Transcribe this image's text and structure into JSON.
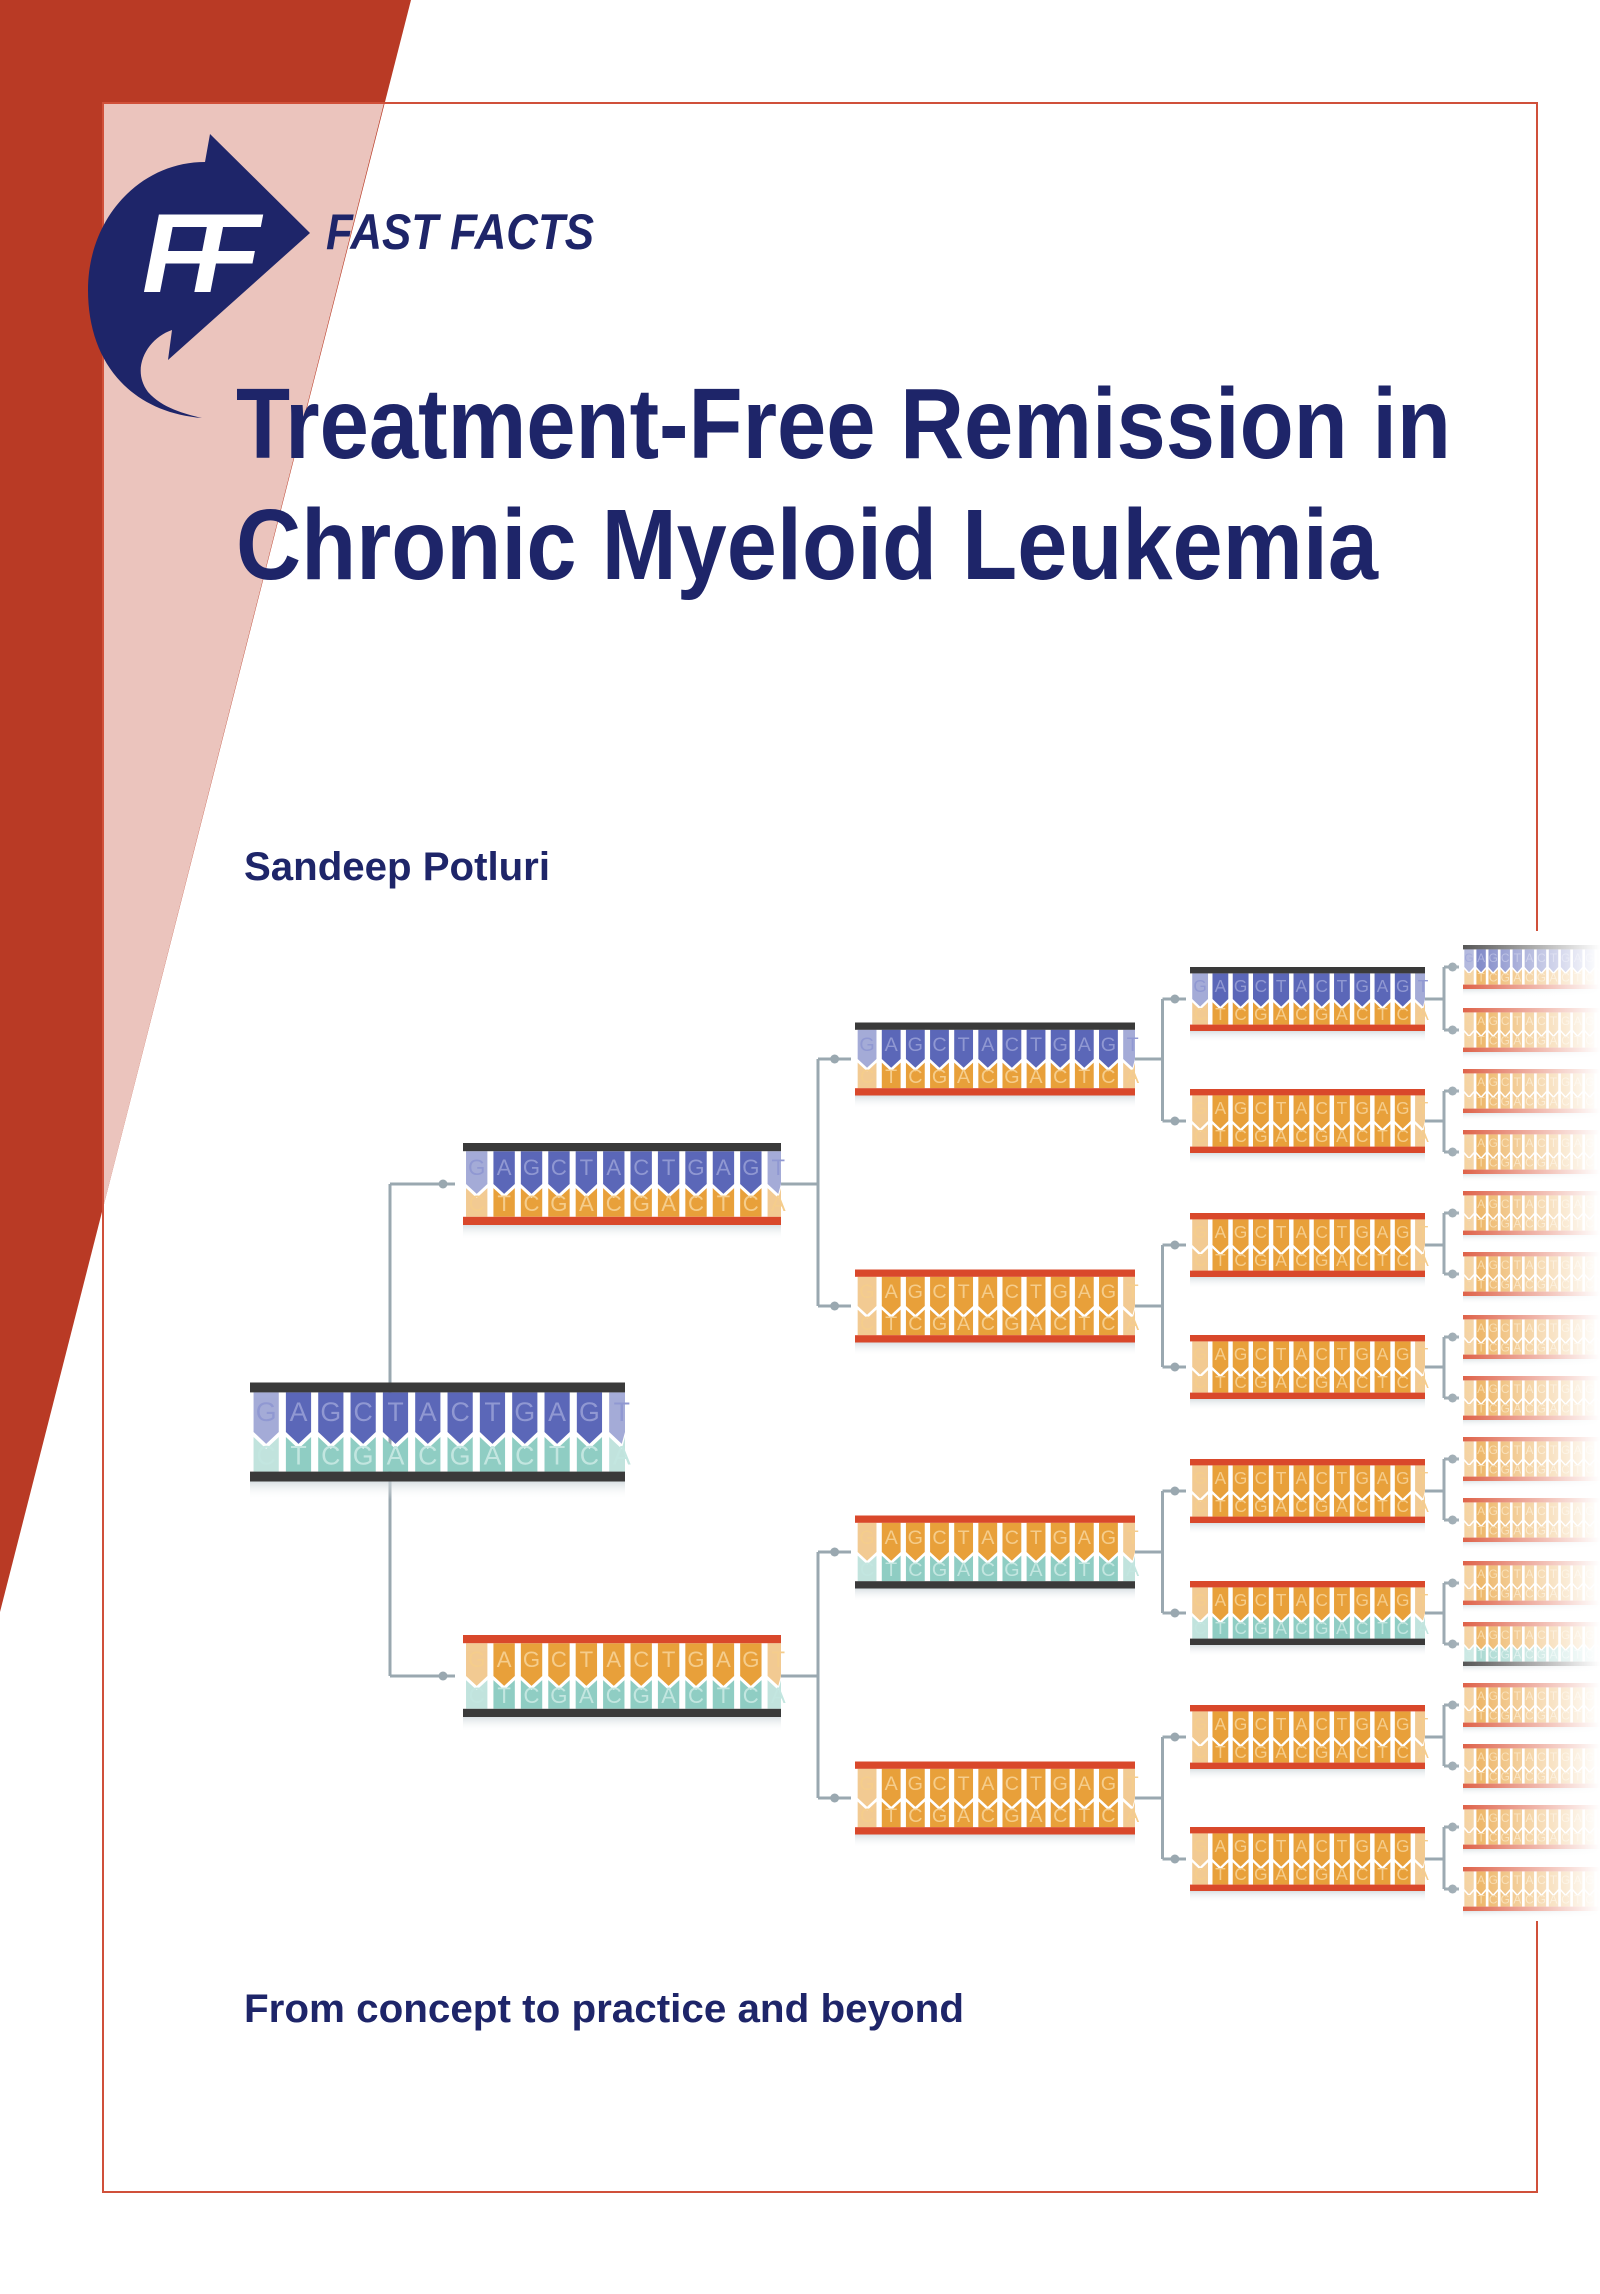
{
  "brand": {
    "logo_letters": "FF",
    "name": "FAST FACTS"
  },
  "title": {
    "line1": "Treatment-Free Remission in",
    "line2": "Chronic Myeloid Leukemia"
  },
  "author": "Sandeep Potluri",
  "tagline": "From concept to practice and beyond",
  "colors": {
    "cover_red": "#b93a25",
    "cover_pink": "#ebc4bd",
    "navy": "#1e2569",
    "base_blue": "#5b67b8",
    "base_teal": "#8fcdc3",
    "base_orange": "#e8a03a",
    "bar_black": "#3a3a3a",
    "bar_red": "#d9482b",
    "connector": "#9aa8b0"
  },
  "dna": {
    "top_sequence": "GAGCTACTGAGT",
    "bottom_sequence": "CTCGACGACTCA",
    "levels": [
      [
        "blue/teal"
      ],
      [
        "blue/orange",
        "orange/teal"
      ],
      [
        "blue/orange",
        "orange/orange",
        "orange/teal",
        "orange/orange"
      ],
      [
        "blue/orange",
        "orange/orange",
        "orange/orange",
        "orange/orange",
        "orange/orange",
        "orange/teal",
        "orange/orange",
        "orange/orange"
      ],
      [
        "blue/orange",
        "orange/orange",
        "orange/orange",
        "orange/orange",
        "orange/orange",
        "orange/orange",
        "orange/orange",
        "orange/orange",
        "orange/orange",
        "orange/orange",
        "orange/orange",
        "orange/teal",
        "orange/orange",
        "orange/orange",
        "orange/orange",
        "orange/orange"
      ]
    ]
  }
}
